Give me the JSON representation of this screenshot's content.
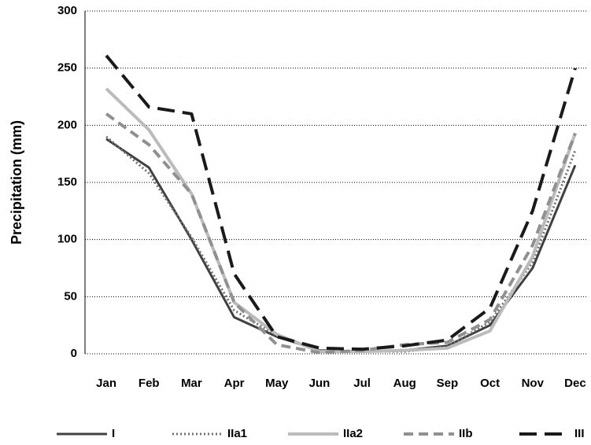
{
  "chart_data": {
    "type": "line",
    "y_label": "Precipitation (mm)",
    "categories": [
      "Jan",
      "Feb",
      "Mar",
      "Apr",
      "May",
      "Jun",
      "Jul",
      "Aug",
      "Sep",
      "Oct",
      "Nov",
      "Dec"
    ],
    "series": [
      {
        "name": "I",
        "color": "#404040",
        "dash": "none",
        "width": 3,
        "values": [
          188,
          163,
          100,
          32,
          15,
          3,
          2,
          3,
          7,
          25,
          75,
          165
        ]
      },
      {
        "name": "IIa1",
        "color": "#707070",
        "dash": "2 3",
        "width": 3,
        "values": [
          190,
          158,
          102,
          38,
          16,
          3,
          2,
          2,
          6,
          28,
          80,
          178
        ]
      },
      {
        "name": "IIa2",
        "color": "#bbbbbb",
        "dash": "none",
        "width": 4,
        "values": [
          232,
          196,
          140,
          45,
          17,
          2,
          2,
          3,
          5,
          20,
          85,
          193
        ]
      },
      {
        "name": "IIb",
        "color": "#909090",
        "dash": "12 7",
        "width": 4,
        "values": [
          210,
          183,
          140,
          45,
          8,
          1,
          3,
          8,
          10,
          30,
          95,
          193
        ]
      },
      {
        "name": "III",
        "color": "#1a1a1a",
        "dash": "22 10",
        "width": 4,
        "values": [
          261,
          216,
          210,
          70,
          15,
          5,
          4,
          7,
          12,
          40,
          125,
          250
        ]
      }
    ],
    "ylim": [
      0,
      300
    ],
    "yticks": [
      0,
      50,
      100,
      150,
      200,
      250,
      300
    ],
    "grid": true
  }
}
